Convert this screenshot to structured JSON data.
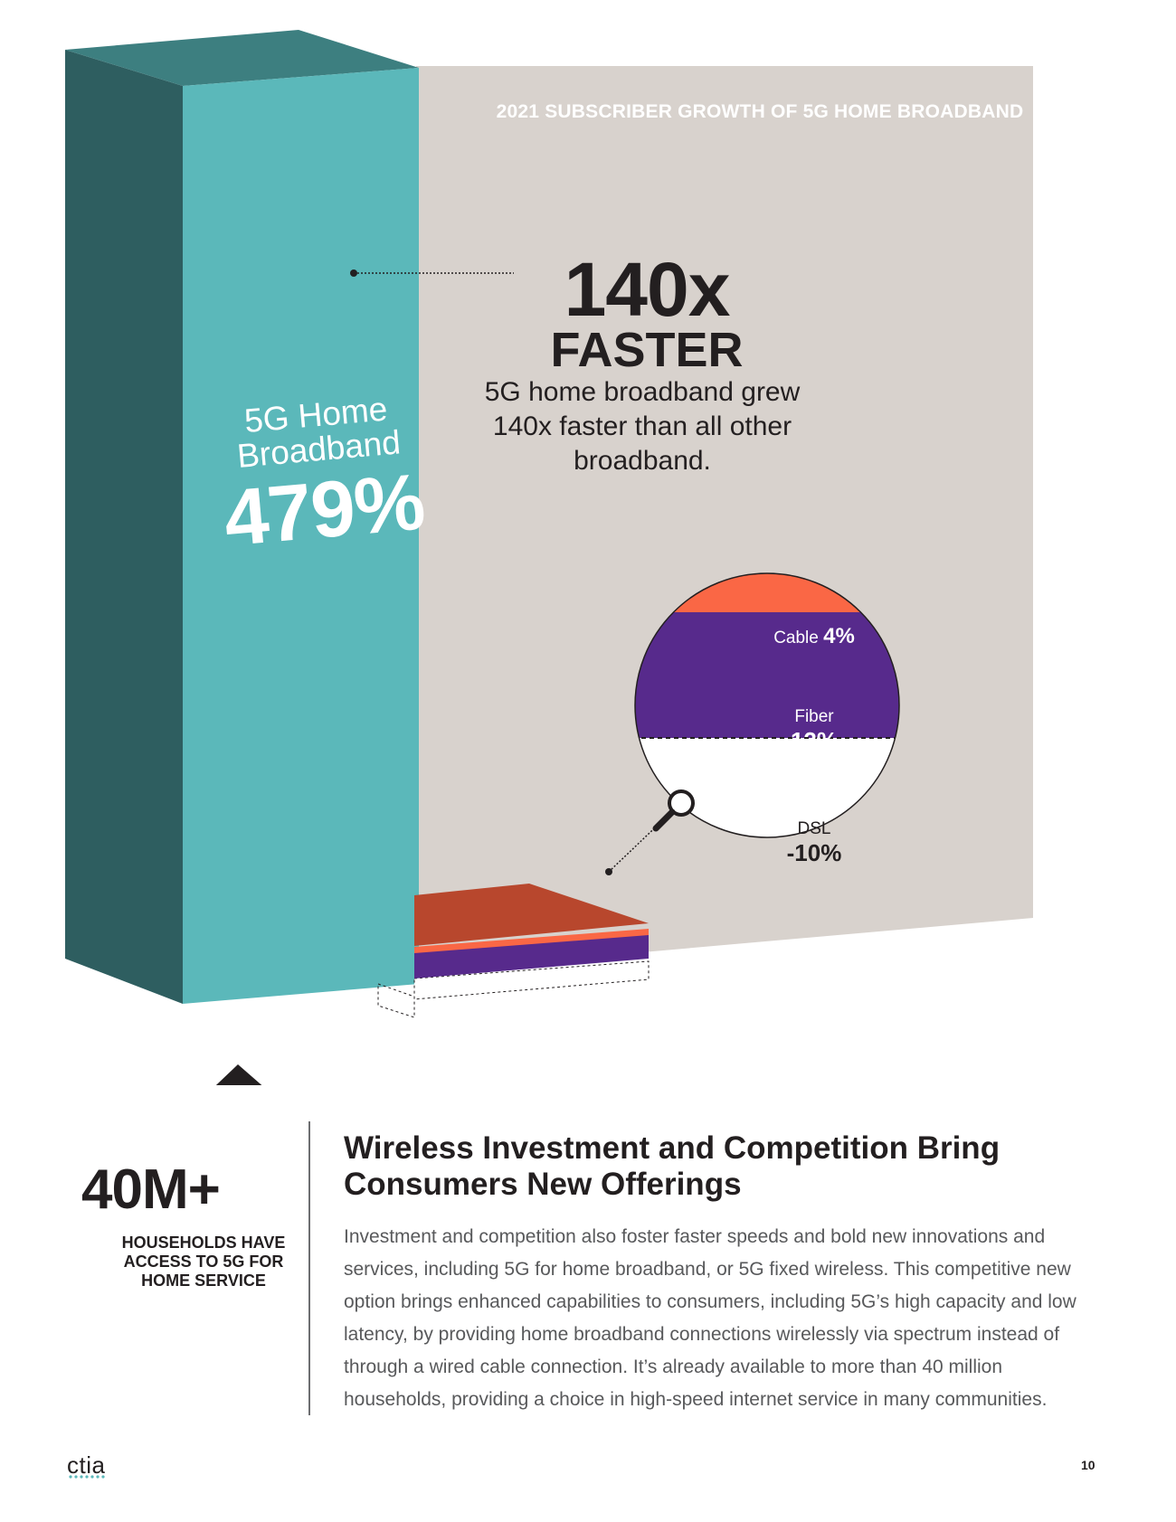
{
  "chart_data": {
    "type": "bar",
    "title": "2021 SUBSCRIBER GROWTH OF 5G HOME BROADBAND",
    "categories": [
      "5G Home Broadband",
      "Cable",
      "Fiber",
      "DSL"
    ],
    "values": [
      479,
      4,
      12,
      -10
    ],
    "units": "%",
    "colors": {
      "5G Home Broadband": "#5bb8ba",
      "Cable": "#fa6745",
      "Fiber": "#572a8c",
      "DSL": "#ffffff"
    }
  },
  "chart": {
    "title": "2021 SUBSCRIBER GROWTH OF 5G HOME BROADBAND",
    "headline_number": "140x",
    "headline_word": "FASTER",
    "headline_desc": "5G home broadband grew 140x faster than all other broadband.",
    "pillar_name": "5G Home Broadband",
    "pillar_value": "479%",
    "cable_name": "Cable",
    "cable_value": "4%",
    "fiber_name": "Fiber",
    "fiber_value": "12%",
    "dsl_name": "DSL",
    "dsl_value": "-10%",
    "icon": "magnifying-glass-icon"
  },
  "stat": {
    "value": "40M+",
    "caption": "HOUSEHOLDS HAVE ACCESS TO 5G FOR HOME SERVICE",
    "icon": "house-signal-icon"
  },
  "section": {
    "title": "Wireless Investment and Competition Bring Consumers New Offerings",
    "body": "Investment and competition also foster faster speeds and bold new innovations and services, including 5G for home broadband, or 5G fixed wireless. This competitive new option brings enhanced capabilities to consumers, including 5G’s high capacity and low latency, by providing home broadband connections wirelessly via spectrum instead of through a wired cable connection. It’s already available to more than 40 million households, providing a choice in high-speed internet service in many communities."
  },
  "footer": {
    "logo": "ctia",
    "page_number": "10"
  },
  "colors": {
    "panel": "#d8d2cd",
    "teal_front": "#5bb8ba",
    "teal_side": "#2e5e60",
    "teal_top": "#3d7f80",
    "orange": "#fa6745",
    "orange_top": "#b8472d",
    "purple": "#572a8c"
  }
}
